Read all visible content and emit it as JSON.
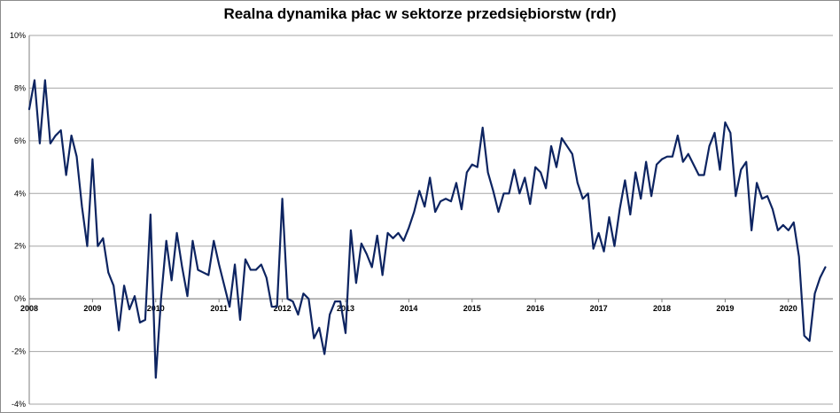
{
  "chart_data": {
    "type": "line",
    "title": "Realna dynamika płac w sektorze przedsiębiorstw (rdr)",
    "xlabel": "",
    "ylabel": "",
    "ylim": [
      -4,
      10
    ],
    "y_ticks": [
      {
        "value": -4,
        "label": "-4%"
      },
      {
        "value": -2,
        "label": "-2%"
      },
      {
        "value": 0,
        "label": "0%"
      },
      {
        "value": 2,
        "label": "2%"
      },
      {
        "value": 4,
        "label": "4%"
      },
      {
        "value": 6,
        "label": "6%"
      },
      {
        "value": 8,
        "label": "8%"
      },
      {
        "value": 10,
        "label": "10%"
      }
    ],
    "x_ticks": [
      "2008",
      "2009",
      "2010",
      "2011",
      "2012",
      "2013",
      "2014",
      "2015",
      "2016",
      "2017",
      "2018",
      "2019",
      "2020"
    ],
    "grid": "horizontal",
    "line_color": "#0d2461",
    "series": [
      {
        "start": "2008-01",
        "values": [
          7.2,
          8.3,
          5.9,
          8.3,
          5.9,
          6.2,
          6.4,
          4.7,
          6.2,
          5.4,
          3.5,
          2.0,
          5.3,
          2.0,
          2.3,
          1.0,
          0.5,
          -1.2,
          0.5,
          -0.4,
          0.1,
          -0.9,
          -0.8,
          3.2,
          -3.0,
          0.0,
          2.2,
          0.7,
          2.5,
          1.2,
          0.1,
          2.2,
          1.1,
          1.0,
          0.9,
          2.2,
          1.3,
          0.5,
          -0.3,
          1.3,
          -0.8,
          1.5,
          1.1,
          1.1,
          1.3,
          0.8,
          -0.3,
          -0.3,
          3.8,
          0.0,
          -0.1,
          -0.6,
          0.2,
          0.0,
          -1.5,
          -1.1,
          -2.1,
          -0.6,
          -0.1,
          -0.1,
          -1.3,
          2.6,
          0.6,
          2.1,
          1.7,
          1.2,
          2.4,
          0.9,
          2.5,
          2.3,
          2.5,
          2.2,
          2.7,
          3.3,
          4.1,
          3.5,
          4.6,
          3.3,
          3.7,
          3.8,
          3.7,
          4.4,
          3.4,
          4.8,
          5.1,
          5.0,
          6.5,
          4.8,
          4.1,
          3.3,
          4.0,
          4.0,
          4.9,
          4.0,
          4.6,
          3.6,
          5.0,
          4.8,
          4.2,
          5.8,
          5.0,
          6.1,
          5.8,
          5.5,
          4.4,
          3.8,
          4.0,
          1.9,
          2.5,
          1.8,
          3.1,
          2.0,
          3.4,
          4.5,
          3.2,
          4.8,
          3.8,
          5.2,
          3.9,
          5.1,
          5.3,
          5.4,
          5.4,
          6.2,
          5.2,
          5.5,
          5.1,
          4.7,
          4.7,
          5.8,
          6.3,
          4.9,
          6.7,
          6.3,
          3.9,
          4.9,
          5.2,
          2.6,
          4.4,
          3.8,
          3.9,
          3.4,
          2.6,
          2.8,
          2.6,
          2.9,
          1.6,
          -1.4,
          -1.6,
          0.2,
          0.8,
          1.2
        ]
      }
    ]
  }
}
